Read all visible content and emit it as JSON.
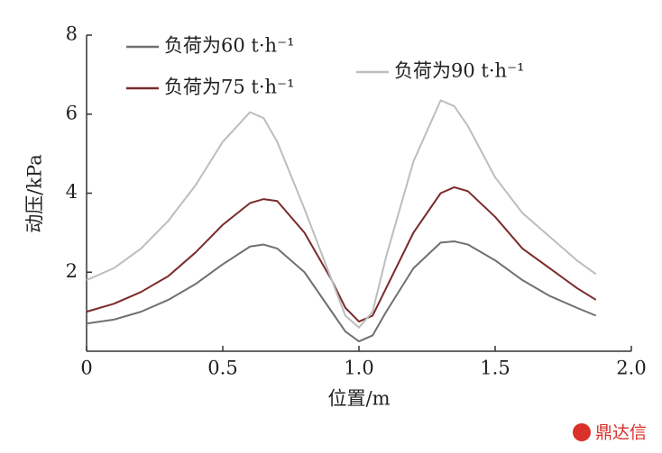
{
  "chart_data": {
    "type": "line",
    "x_label": "位置/m",
    "y_label": "动压/kPa",
    "x": [
      0,
      0.1,
      0.2,
      0.3,
      0.4,
      0.5,
      0.6,
      0.65,
      0.7,
      0.8,
      0.9,
      0.95,
      1.0,
      1.05,
      1.1,
      1.2,
      1.3,
      1.35,
      1.4,
      1.5,
      1.6,
      1.7,
      1.8,
      1.87
    ],
    "series": [
      {
        "name": "负荷为60 t·h⁻¹",
        "color": "#707070",
        "values": [
          0.7,
          0.8,
          1.0,
          1.3,
          1.7,
          2.2,
          2.65,
          2.7,
          2.6,
          2.0,
          1.0,
          0.5,
          0.25,
          0.4,
          1.0,
          2.1,
          2.75,
          2.78,
          2.7,
          2.3,
          1.8,
          1.4,
          1.1,
          0.9
        ]
      },
      {
        "name": "负荷为75 t·h⁻¹",
        "color": "#7a2a2a",
        "values": [
          1.0,
          1.2,
          1.5,
          1.9,
          2.5,
          3.2,
          3.75,
          3.85,
          3.8,
          3.0,
          1.8,
          1.1,
          0.75,
          0.9,
          1.6,
          3.0,
          4.0,
          4.15,
          4.05,
          3.4,
          2.6,
          2.1,
          1.6,
          1.3
        ]
      },
      {
        "name": "负荷为90 t·h⁻¹",
        "color": "#bdbdbd",
        "values": [
          1.8,
          2.1,
          2.6,
          3.3,
          4.2,
          5.3,
          6.05,
          5.9,
          5.3,
          3.6,
          1.8,
          0.9,
          0.6,
          1.0,
          2.4,
          4.8,
          6.35,
          6.2,
          5.7,
          4.4,
          3.5,
          2.9,
          2.3,
          1.95
        ]
      }
    ],
    "xlim": [
      0,
      2
    ],
    "xticks": [
      0,
      0.5,
      {
        "value": 1,
        "label": "1.0"
      },
      1.5,
      {
        "value": 2,
        "label": "2.0"
      }
    ],
    "ylim": [
      0,
      8
    ],
    "yticks": [
      2,
      4,
      6,
      8
    ],
    "watermark": "鼎达信"
  }
}
